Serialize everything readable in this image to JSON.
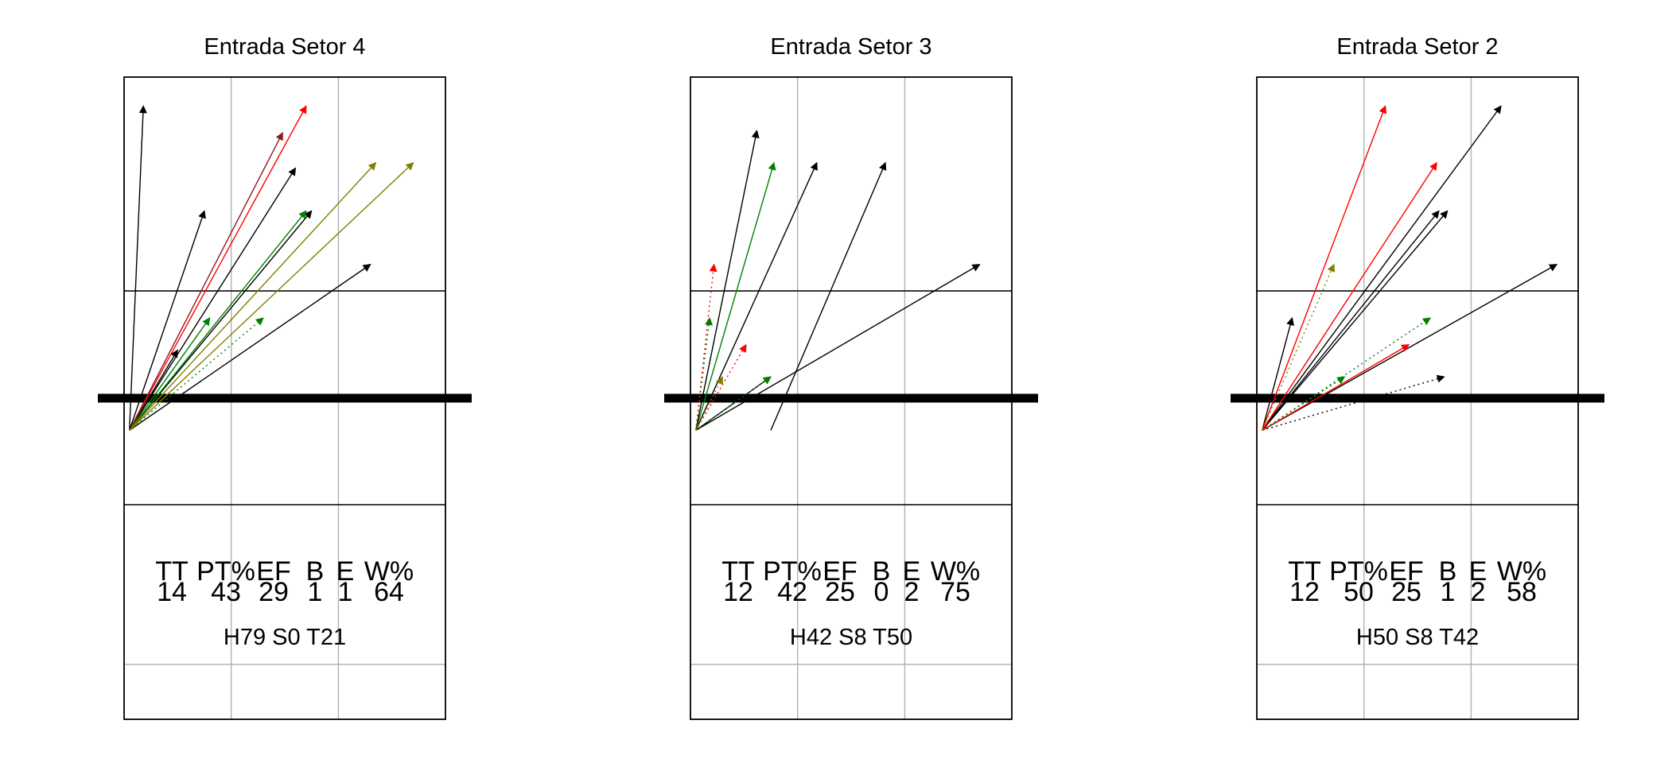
{
  "chart_data": [
    {
      "type": "court-direction-chart",
      "title": "Entrada Setor 4",
      "stats": {
        "headers": [
          "TT",
          "PT%",
          "EF",
          "B",
          "E",
          "W%"
        ],
        "values": [
          "14",
          "43",
          "29",
          "1",
          "1",
          "64"
        ]
      },
      "summary": "H79 S0 T21",
      "arrows": [
        {
          "from": [
            0.05,
            -0.3
          ],
          "to": [
            0.18,
            2.73
          ],
          "color": "black",
          "dotted": false
        },
        {
          "from": [
            0.05,
            -0.3
          ],
          "to": [
            1.6,
            2.15
          ],
          "color": "black",
          "dotted": false
        },
        {
          "from": [
            0.05,
            -0.3
          ],
          "to": [
            0.75,
            1.75
          ],
          "color": "black",
          "dotted": false
        },
        {
          "from": [
            0.05,
            -0.3
          ],
          "to": [
            1.75,
            1.75
          ],
          "color": "black",
          "dotted": false
        },
        {
          "from": [
            0.05,
            -0.3
          ],
          "to": [
            2.3,
            1.25
          ],
          "color": "black",
          "dotted": false
        },
        {
          "from": [
            0.05,
            -0.3
          ],
          "to": [
            0.5,
            0.45
          ],
          "color": "black",
          "dotted": false
        },
        {
          "from": [
            0.05,
            -0.3
          ],
          "to": [
            1.7,
            2.73
          ],
          "color": "red",
          "dotted": false
        },
        {
          "from": [
            0.05,
            -0.3
          ],
          "to": [
            1.48,
            2.48
          ],
          "color": "darkred",
          "dotted": false
        },
        {
          "from": [
            0.05,
            -0.3
          ],
          "to": [
            1.7,
            1.75
          ],
          "color": "green",
          "dotted": false
        },
        {
          "from": [
            0.05,
            -0.3
          ],
          "to": [
            0.8,
            0.75
          ],
          "color": "green",
          "dotted": false
        },
        {
          "from": [
            0.05,
            -0.3
          ],
          "to": [
            1.3,
            0.75
          ],
          "color": "green",
          "dotted": true
        },
        {
          "from": [
            0.05,
            -0.3
          ],
          "to": [
            2.35,
            2.2
          ],
          "color": "olive",
          "dotted": false
        },
        {
          "from": [
            0.05,
            -0.3
          ],
          "to": [
            2.7,
            2.2
          ],
          "color": "olive",
          "dotted": false
        }
      ]
    },
    {
      "type": "court-direction-chart",
      "title": "Entrada Setor 3",
      "stats": {
        "headers": [
          "TT",
          "PT%",
          "EF",
          "B",
          "E",
          "W%"
        ],
        "values": [
          "12",
          "42",
          "25",
          "0",
          "2",
          "75"
        ]
      },
      "summary": "H42 S8 T50",
      "arrows": [
        {
          "from": [
            0.05,
            -0.3
          ],
          "to": [
            0.62,
            2.5
          ],
          "color": "black",
          "dotted": false
        },
        {
          "from": [
            0.05,
            -0.3
          ],
          "to": [
            1.18,
            2.2
          ],
          "color": "black",
          "dotted": false
        },
        {
          "from": [
            0.75,
            -0.3
          ],
          "to": [
            1.82,
            2.2
          ],
          "color": "black",
          "dotted": false
        },
        {
          "from": [
            0.05,
            -0.3
          ],
          "to": [
            2.7,
            1.25
          ],
          "color": "black",
          "dotted": false
        },
        {
          "from": [
            0.05,
            -0.3
          ],
          "to": [
            0.75,
            0.2
          ],
          "color": "black",
          "dotted": false
        },
        {
          "from": [
            0.05,
            -0.3
          ],
          "to": [
            0.78,
            2.2
          ],
          "color": "green",
          "dotted": false
        },
        {
          "from": [
            0.05,
            -0.3
          ],
          "to": [
            0.18,
            0.75
          ],
          "color": "green",
          "dotted": true
        },
        {
          "from": [
            0.05,
            -0.3
          ],
          "to": [
            0.75,
            0.2
          ],
          "color": "green",
          "dotted": true
        },
        {
          "from": [
            0.05,
            -0.3
          ],
          "to": [
            0.22,
            1.25
          ],
          "color": "red",
          "dotted": true
        },
        {
          "from": [
            0.05,
            -0.3
          ],
          "to": [
            0.52,
            0.5
          ],
          "color": "red",
          "dotted": true
        },
        {
          "from": [
            0.05,
            -0.3
          ],
          "to": [
            0.3,
            0.2
          ],
          "color": "olive",
          "dotted": true
        }
      ]
    },
    {
      "type": "court-direction-chart",
      "title": "Entrada Setor 2",
      "stats": {
        "headers": [
          "TT",
          "PT%",
          "EF",
          "B",
          "E",
          "W%"
        ],
        "values": [
          "12",
          "50",
          "25",
          "1",
          "2",
          "58"
        ]
      },
      "summary": "H50 S8 T42",
      "arrows": [
        {
          "from": [
            0.05,
            -0.3
          ],
          "to": [
            2.28,
            2.73
          ],
          "color": "black",
          "dotted": false
        },
        {
          "from": [
            0.05,
            -0.3
          ],
          "to": [
            1.7,
            1.75
          ],
          "color": "black",
          "dotted": false
        },
        {
          "from": [
            0.05,
            -0.3
          ],
          "to": [
            1.78,
            1.75
          ],
          "color": "black",
          "dotted": false
        },
        {
          "from": [
            0.05,
            -0.3
          ],
          "to": [
            2.8,
            1.25
          ],
          "color": "black",
          "dotted": false
        },
        {
          "from": [
            0.05,
            -0.3
          ],
          "to": [
            0.33,
            0.75
          ],
          "color": "black",
          "dotted": false
        },
        {
          "from": [
            0.05,
            -0.3
          ],
          "to": [
            1.75,
            0.2
          ],
          "color": "black",
          "dotted": true
        },
        {
          "from": [
            0.05,
            -0.3
          ],
          "to": [
            1.2,
            2.73
          ],
          "color": "red",
          "dotted": false
        },
        {
          "from": [
            0.05,
            -0.3
          ],
          "to": [
            1.68,
            2.2
          ],
          "color": "red",
          "dotted": false
        },
        {
          "from": [
            0.05,
            -0.3
          ],
          "to": [
            1.42,
            0.5
          ],
          "color": "red",
          "dotted": false
        },
        {
          "from": [
            0.05,
            -0.3
          ],
          "to": [
            1.62,
            0.75
          ],
          "color": "green",
          "dotted": true
        },
        {
          "from": [
            0.05,
            -0.3
          ],
          "to": [
            0.82,
            0.2
          ],
          "color": "green",
          "dotted": true
        },
        {
          "from": [
            0.05,
            -0.3
          ],
          "to": [
            0.72,
            1.25
          ],
          "color": "olive",
          "dotted": true
        }
      ]
    }
  ]
}
